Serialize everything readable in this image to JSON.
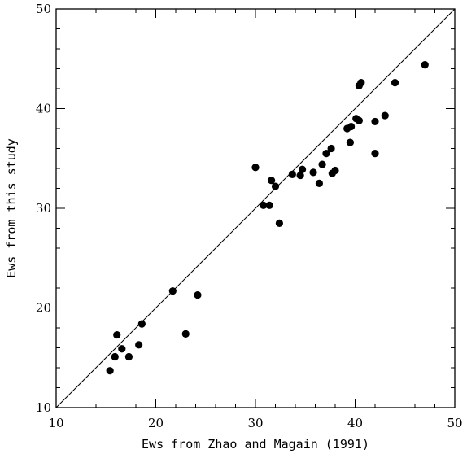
{
  "chart_data": {
    "type": "scatter",
    "title": "",
    "xlabel": "Ews from Zhao and Magain (1991)",
    "ylabel": "Ews from this study",
    "xlim": [
      10,
      50
    ],
    "ylim": [
      10,
      50
    ],
    "xticks": [
      "10",
      "20",
      "30",
      "40",
      "50"
    ],
    "yticks": [
      "10",
      "20",
      "30",
      "40",
      "50"
    ],
    "grid": false,
    "reference_line": {
      "type": "identity",
      "from": [
        10,
        10
      ],
      "to": [
        50,
        50
      ]
    },
    "series": [
      {
        "points": [
          [
            15.4,
            13.7
          ],
          [
            15.9,
            15.1
          ],
          [
            16.1,
            17.3
          ],
          [
            16.6,
            15.9
          ],
          [
            17.3,
            15.1
          ],
          [
            18.3,
            16.3
          ],
          [
            18.6,
            18.4
          ],
          [
            21.7,
            21.7
          ],
          [
            23.0,
            17.4
          ],
          [
            24.2,
            21.3
          ],
          [
            30.0,
            34.1
          ],
          [
            30.8,
            30.3
          ],
          [
            31.4,
            30.3
          ],
          [
            31.6,
            32.8
          ],
          [
            32.0,
            32.2
          ],
          [
            32.4,
            28.5
          ],
          [
            33.7,
            33.4
          ],
          [
            34.5,
            33.3
          ],
          [
            34.7,
            33.9
          ],
          [
            35.8,
            33.6
          ],
          [
            36.4,
            32.5
          ],
          [
            36.7,
            34.4
          ],
          [
            37.1,
            35.5
          ],
          [
            37.6,
            36.0
          ],
          [
            37.7,
            33.5
          ],
          [
            38.0,
            33.8
          ],
          [
            39.2,
            38.0
          ],
          [
            39.5,
            36.6
          ],
          [
            39.6,
            38.2
          ],
          [
            40.1,
            39.0
          ],
          [
            40.4,
            38.8
          ],
          [
            40.4,
            42.3
          ],
          [
            40.6,
            42.6
          ],
          [
            42.0,
            38.7
          ],
          [
            42.0,
            35.5
          ],
          [
            43.0,
            39.3
          ],
          [
            44.0,
            42.6
          ],
          [
            47.0,
            44.4
          ]
        ]
      }
    ]
  }
}
